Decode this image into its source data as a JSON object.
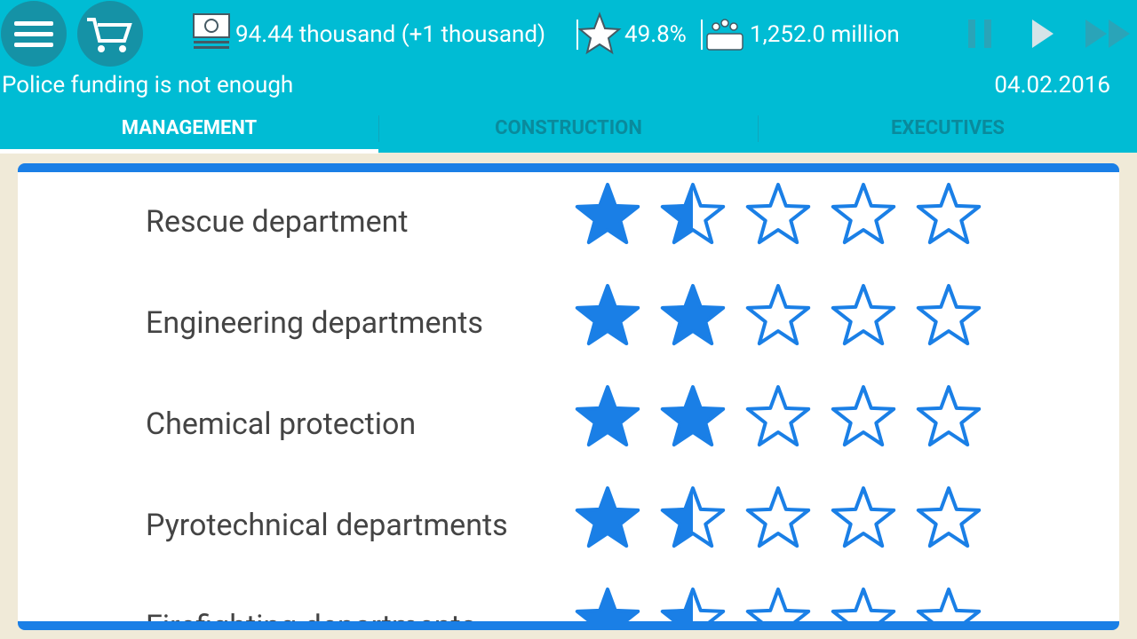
{
  "header": {
    "money": "94.44 thousand (+1 thousand)",
    "rating": "49.8%",
    "population": "1,252.0 million",
    "message": "Police funding is not enough",
    "date": "04.02.2016"
  },
  "tabs": [
    "MANAGEMENT",
    "CONSTRUCTION",
    "EXECUTIVES"
  ],
  "max_stars": 5,
  "departments": [
    {
      "name": "Rescue department",
      "rating": 1.5
    },
    {
      "name": "Engineering departments",
      "rating": 2
    },
    {
      "name": "Chemical protection",
      "rating": 2
    },
    {
      "name": "Pyrotechnical departments",
      "rating": 1.5
    },
    {
      "name": "Firefighting departments",
      "rating": 1.5
    }
  ]
}
